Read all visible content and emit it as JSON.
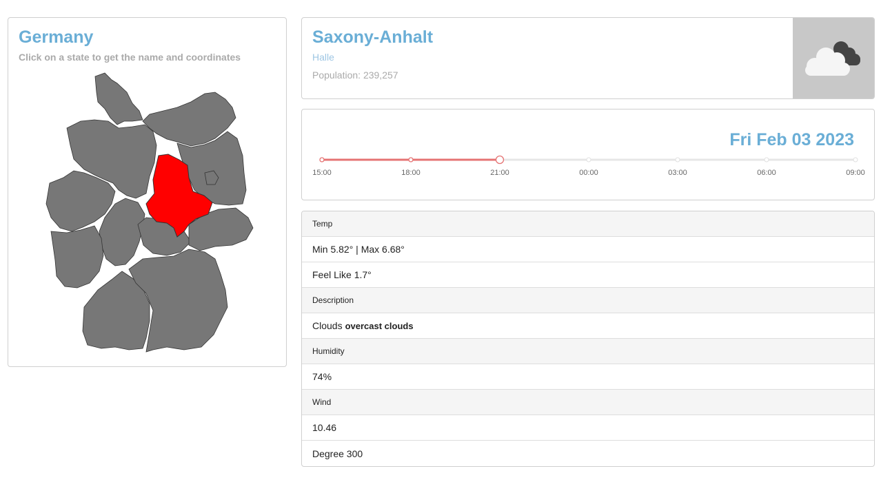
{
  "map": {
    "title": "Germany",
    "subtitle": "Click on a state to get the name and coordinates",
    "selected_state_color": "#ff0000",
    "state_color": "#777777"
  },
  "header": {
    "state": "Saxony-Anhalt",
    "city": "Halle",
    "population": "Population: 239,257",
    "weather_icon": "cloud-icon"
  },
  "timeline": {
    "date": "Fri Feb 03 2023",
    "times": [
      "15:00",
      "18:00",
      "21:00",
      "00:00",
      "03:00",
      "06:00",
      "09:00"
    ],
    "active_index": 2,
    "accent": "#e57373"
  },
  "details": {
    "temp_label": "Temp",
    "temp_minmax": "Min 5.82° | Max 6.68°",
    "feels_like": "Feel Like 1.7°",
    "description_label": "Description",
    "description_main": "Clouds",
    "description_detail": "overcast clouds",
    "humidity_label": "Humidity",
    "humidity_value": "74%",
    "wind_label": "Wind",
    "wind_speed": "10.46",
    "wind_degree": "Degree 300"
  }
}
